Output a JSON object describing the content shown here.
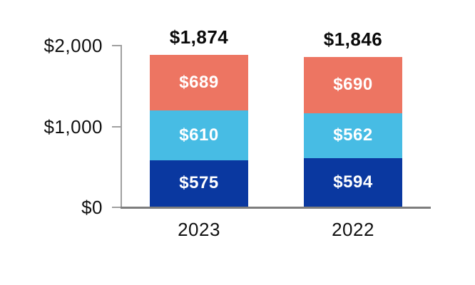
{
  "chart_data": {
    "type": "bar",
    "stacked": true,
    "title": "",
    "xlabel": "",
    "ylabel": "",
    "categories": [
      "2023",
      "2022"
    ],
    "series": [
      {
        "name": "bottom-segment",
        "color": "#0a38a0",
        "values": [
          575,
          594
        ],
        "labels": [
          "$575",
          "$594"
        ]
      },
      {
        "name": "middle-segment",
        "color": "#47bce4",
        "values": [
          610,
          562
        ],
        "labels": [
          "$610",
          "$562"
        ]
      },
      {
        "name": "top-segment",
        "color": "#ed7562",
        "values": [
          689,
          690
        ],
        "labels": [
          "$689",
          "$690"
        ]
      }
    ],
    "totals": [
      1874,
      1846
    ],
    "total_labels": [
      "$1,874",
      "$1,846"
    ],
    "y_axis": {
      "range": [
        0,
        2000
      ],
      "tick_values": [
        2000,
        1000,
        0
      ],
      "tick_labels": [
        "$2,000",
        "$1,000",
        "$0"
      ]
    },
    "grid": false,
    "legend": "none"
  },
  "colors": {
    "axis_line": "#a0a0a0",
    "baseline": "#7d7d7d",
    "axis_text": "#111111",
    "total_text": "#0a0a0a",
    "segment_text": "#ffffff",
    "background": "#ffffff"
  }
}
